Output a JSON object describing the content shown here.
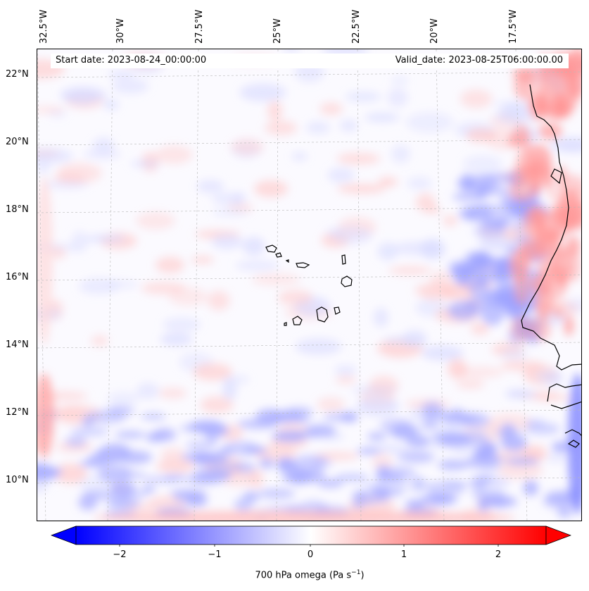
{
  "header": {
    "start_date": "Start date: 2023-08-24_00:00:00",
    "valid_date": "Valid_date: 2023-08-25T06:00:00.00"
  },
  "axes": {
    "lat_labels": [
      "22°N",
      "20°N",
      "18°N",
      "16°N",
      "14°N",
      "12°N",
      "10°N"
    ],
    "lon_labels": [
      "32.5°W",
      "30°W",
      "27.5°W",
      "25°W",
      "22.5°W",
      "20°W",
      "17.5°W"
    ],
    "lat_range": [
      8.9,
      22.8
    ],
    "lon_range": [
      -32.8,
      -15.3
    ]
  },
  "colorbar": {
    "label_prefix": "700 hPa omega (Pa s",
    "label_exp": "−1",
    "label_suffix": ")",
    "ticks": [
      "−2",
      "−1",
      "0",
      "1",
      "2"
    ],
    "range": [
      -2.6,
      2.6
    ],
    "extend": "both",
    "colormap": "bwr",
    "low_color": "#0000ff",
    "mid_color": "#ffffff",
    "high_color": "#ff0000"
  },
  "field": {
    "variable": "700 hPa omega",
    "grid": "dashed gray graticule",
    "coastline_color": "#000000"
  }
}
